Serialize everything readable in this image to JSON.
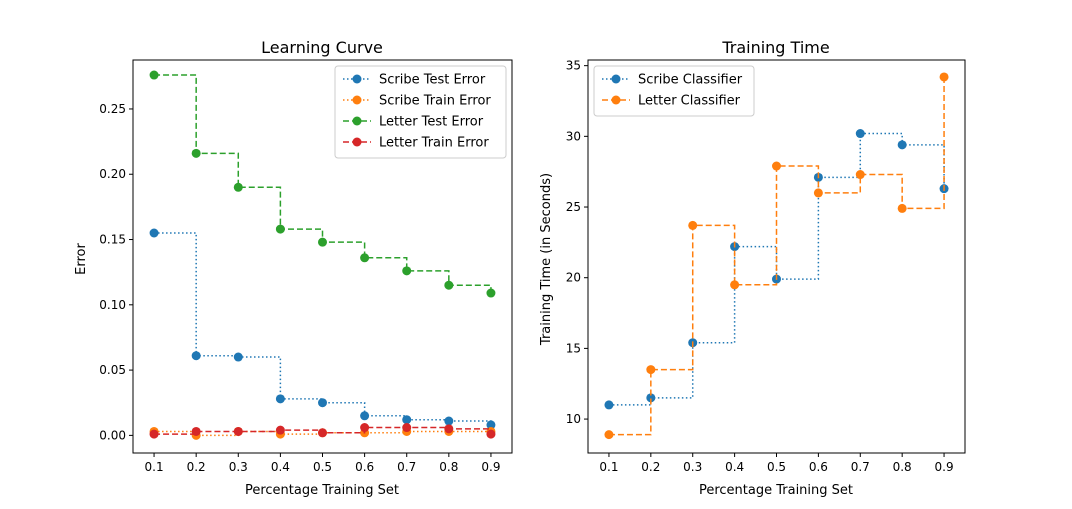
{
  "chart_data": [
    {
      "type": "line",
      "title": "Learning Curve",
      "xlabel": "Percentage Training Set",
      "ylabel": "Error",
      "x": [
        0.1,
        0.2,
        0.3,
        0.4,
        0.5,
        0.6,
        0.7,
        0.8,
        0.9
      ],
      "xlim": [
        0.05,
        0.95
      ],
      "ylim": [
        -0.0135,
        0.2875
      ],
      "xticks": [
        "0.1",
        "0.2",
        "0.3",
        "0.4",
        "0.5",
        "0.6",
        "0.7",
        "0.8",
        "0.9"
      ],
      "yticks": [
        "0.00",
        "0.05",
        "0.10",
        "0.15",
        "0.20",
        "0.25"
      ],
      "ytick_values": [
        0,
        0.05,
        0.1,
        0.15,
        0.2,
        0.25
      ],
      "legend_position": "top-right",
      "series": [
        {
          "name": "Scribe Test Error",
          "color": "#1f77b4",
          "dash": "dotted",
          "values": [
            0.155,
            0.061,
            0.06,
            0.028,
            0.025,
            0.015,
            0.012,
            0.011,
            0.008
          ]
        },
        {
          "name": "Scribe Train Error",
          "color": "#ff7f0e",
          "dash": "dotted",
          "values": [
            0.003,
            0.0,
            0.003,
            0.001,
            0.002,
            0.002,
            0.003,
            0.003,
            0.003
          ]
        },
        {
          "name": "Letter Test Error",
          "color": "#2ca02c",
          "dash": "dashed",
          "values": [
            0.276,
            0.216,
            0.19,
            0.158,
            0.148,
            0.136,
            0.126,
            0.115,
            0.109
          ]
        },
        {
          "name": "Letter Train Error",
          "color": "#d62728",
          "dash": "dashed",
          "values": [
            0.001,
            0.003,
            0.003,
            0.004,
            0.002,
            0.006,
            0.006,
            0.005,
            0.001
          ]
        }
      ]
    },
    {
      "type": "line",
      "title": "Training Time",
      "xlabel": "Percentage Training Set",
      "ylabel": "Training Time (in Seconds)",
      "x": [
        0.1,
        0.2,
        0.3,
        0.4,
        0.5,
        0.6,
        0.7,
        0.8,
        0.9
      ],
      "xlim": [
        0.05,
        0.95
      ],
      "ylim": [
        7.6,
        35.4
      ],
      "xticks": [
        "0.1",
        "0.2",
        "0.3",
        "0.4",
        "0.5",
        "0.6",
        "0.7",
        "0.8",
        "0.9"
      ],
      "yticks": [
        "10",
        "15",
        "20",
        "25",
        "30",
        "35"
      ],
      "ytick_values": [
        10,
        15,
        20,
        25,
        30,
        35
      ],
      "legend_position": "top-left",
      "series": [
        {
          "name": "Scribe Classifier",
          "color": "#1f77b4",
          "dash": "dotted",
          "values": [
            11.0,
            11.5,
            15.4,
            22.2,
            19.9,
            27.1,
            30.2,
            29.4,
            26.3
          ]
        },
        {
          "name": "Letter Classifier",
          "color": "#ff7f0e",
          "dash": "dashed",
          "values": [
            8.9,
            13.5,
            23.7,
            19.5,
            27.9,
            26.0,
            27.3,
            24.9,
            34.2
          ]
        }
      ]
    }
  ]
}
